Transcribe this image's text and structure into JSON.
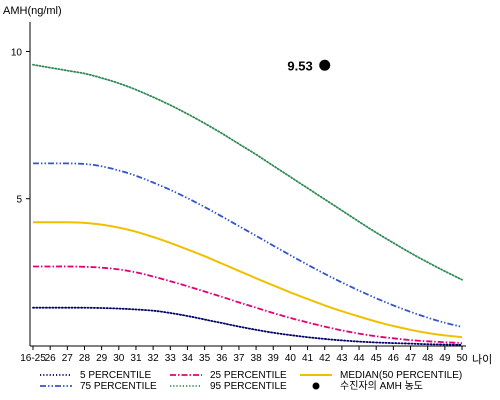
{
  "chart_data": {
    "type": "line",
    "title": "",
    "ylabel": "AMH(ng/ml)",
    "xlabel": "나이",
    "ylim": [
      0,
      11
    ],
    "yticks": [
      10,
      5
    ],
    "grid": false,
    "legend_position": "bottom",
    "x": [
      "16-25",
      "26",
      "27",
      "28",
      "29",
      "30",
      "31",
      "32",
      "33",
      "34",
      "35",
      "36",
      "37",
      "38",
      "39",
      "40",
      "41",
      "42",
      "43",
      "44",
      "45",
      "46",
      "47",
      "48",
      "49",
      "50"
    ],
    "series": [
      {
        "name": "5 PERCENTILE",
        "color": "#000066",
        "style": "dotted",
        "values": [
          1.3,
          1.3,
          1.3,
          1.3,
          1.29,
          1.27,
          1.24,
          1.2,
          1.12,
          1.02,
          0.9,
          0.78,
          0.66,
          0.55,
          0.45,
          0.37,
          0.3,
          0.24,
          0.19,
          0.15,
          0.12,
          0.1,
          0.08,
          0.06,
          0.05,
          0.04
        ]
      },
      {
        "name": "25 PERCENTILE",
        "color": "#e0007a",
        "style": "dashdot",
        "values": [
          2.7,
          2.7,
          2.7,
          2.69,
          2.66,
          2.6,
          2.5,
          2.36,
          2.2,
          2.03,
          1.85,
          1.67,
          1.48,
          1.3,
          1.12,
          0.95,
          0.8,
          0.66,
          0.53,
          0.42,
          0.33,
          0.26,
          0.2,
          0.16,
          0.13,
          0.1
        ]
      },
      {
        "name": "MEDIAN(50 PERCENTILE)",
        "color": "#f0c000",
        "style": "solid",
        "values": [
          4.2,
          4.2,
          4.2,
          4.18,
          4.12,
          4.02,
          3.88,
          3.7,
          3.5,
          3.28,
          3.05,
          2.8,
          2.55,
          2.3,
          2.06,
          1.82,
          1.6,
          1.38,
          1.18,
          1.0,
          0.83,
          0.68,
          0.55,
          0.44,
          0.36,
          0.3
        ]
      },
      {
        "name": "75 PERCENTILE",
        "color": "#3355cc",
        "style": "dashdotdot",
        "values": [
          6.2,
          6.2,
          6.2,
          6.18,
          6.1,
          5.96,
          5.78,
          5.55,
          5.3,
          5.02,
          4.72,
          4.4,
          4.07,
          3.74,
          3.41,
          3.08,
          2.76,
          2.45,
          2.16,
          1.88,
          1.62,
          1.38,
          1.16,
          0.96,
          0.79,
          0.65
        ]
      },
      {
        "name": "95 PERCENTILE",
        "color": "#2e8b57",
        "style": "dotted",
        "values": [
          9.55,
          9.45,
          9.35,
          9.25,
          9.1,
          8.92,
          8.7,
          8.45,
          8.18,
          7.88,
          7.56,
          7.22,
          6.86,
          6.5,
          6.12,
          5.74,
          5.36,
          4.98,
          4.6,
          4.22,
          3.85,
          3.5,
          3.16,
          2.84,
          2.54,
          2.25
        ]
      }
    ],
    "points": [
      {
        "name": "수진자의 AMH 농도",
        "x": "42",
        "y": 9.53,
        "label": "9.53",
        "color": "#000000"
      }
    ]
  }
}
